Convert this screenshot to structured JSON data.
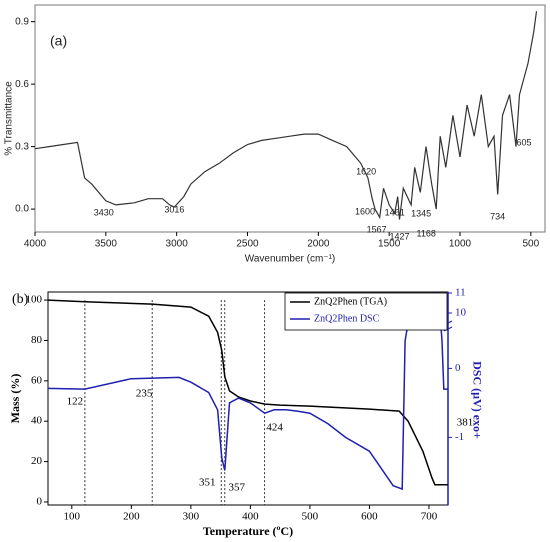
{
  "chart_data": [
    {
      "type": "line",
      "label": "(a)",
      "xlabel": "Wavenumber (cm⁻¹)",
      "ylabel": "% Transmittance",
      "xlim": [
        4000,
        400
      ],
      "xticks": [
        4000,
        3500,
        3000,
        2500,
        2000,
        1500,
        1000,
        500
      ],
      "ylim": [
        -0.11,
        0.98
      ],
      "yticks": [
        {
          "value": 0,
          "label": "0.0"
        },
        0.3,
        0.6,
        0.9
      ],
      "series": [
        {
          "color": "#333333",
          "x": [
            4000,
            3900,
            3800,
            3700,
            3650,
            3600,
            3500,
            3430,
            3300,
            3200,
            3100,
            3050,
            3016,
            2950,
            2900,
            2800,
            2700,
            2600,
            2500,
            2400,
            2300,
            2200,
            2100,
            2000,
            1900,
            1800,
            1700,
            1650,
            1620,
            1600,
            1567,
            1540,
            1500,
            1461,
            1440,
            1427,
            1400,
            1345,
            1320,
            1280,
            1240,
            1200,
            1168,
            1140,
            1100,
            1050,
            1000,
            950,
            900,
            850,
            800,
            760,
            734,
            700,
            650,
            605,
            580,
            520,
            480,
            460
          ],
          "values": [
            0.29,
            0.3,
            0.31,
            0.32,
            0.15,
            0.12,
            0.04,
            0.02,
            0.03,
            0.05,
            0.05,
            0.02,
            0.01,
            0.06,
            0.12,
            0.18,
            0.22,
            0.27,
            0.31,
            0.33,
            0.34,
            0.35,
            0.36,
            0.36,
            0.33,
            0.3,
            0.22,
            0.15,
            0.05,
            0.0,
            -0.04,
            0.1,
            0.02,
            -0.02,
            0.06,
            -0.05,
            0.1,
            0.02,
            0.2,
            0.08,
            0.3,
            0.12,
            0.0,
            0.35,
            0.2,
            0.45,
            0.25,
            0.5,
            0.35,
            0.55,
            0.3,
            0.35,
            0.07,
            0.45,
            0.55,
            0.3,
            0.55,
            0.7,
            0.85,
            0.95
          ]
        }
      ],
      "peak_labels": [
        3430,
        3016,
        1620,
        1600,
        1567,
        1461,
        1427,
        1345,
        1168,
        734,
        605
      ]
    },
    {
      "type": "line",
      "label": "(b)",
      "xlabel": "Temperature (ºC)",
      "ylabel": "Mass (%)",
      "y2label": "DSC (µV) exo+",
      "xlim": [
        60,
        732
      ],
      "xticks": [
        100,
        200,
        300,
        400,
        500,
        600,
        700
      ],
      "ylim": [
        -1.5,
        104
      ],
      "yticks": [
        0,
        20,
        40,
        60,
        80,
        100
      ],
      "y2lim": [
        -1.98,
        11.05
      ],
      "y2ticks": [
        -1,
        0,
        10,
        11
      ],
      "y2break": [
        0.6,
        9.3
      ],
      "legend": "upper right",
      "series": [
        {
          "name": "ZnQ2Phen (TGA)",
          "color": "#000000",
          "x": [
            60,
            122,
            235,
            300,
            330,
            345,
            352,
            357,
            365,
            380,
            400,
            424,
            450,
            500,
            600,
            650,
            665,
            690,
            705,
            710,
            732
          ],
          "values": [
            100,
            99.2,
            98,
            96.5,
            92,
            84,
            75,
            62,
            55,
            52,
            50,
            48.5,
            48,
            47.5,
            46,
            45,
            40,
            25,
            12,
            8.5,
            8.5
          ]
        },
        {
          "name": "ZnQ2Phen DSC",
          "color": "#1f1fb0",
          "axis": "y2",
          "x": [
            60,
            122,
            200,
            280,
            300,
            330,
            345,
            352,
            357,
            365,
            380,
            400,
            424,
            440,
            460,
            480,
            500,
            530,
            560,
            600,
            640,
            655,
            660,
            665,
            680,
            700,
            710,
            718,
            722,
            725,
            732
          ],
          "values": [
            -0.29,
            -0.3,
            -0.15,
            -0.13,
            -0.2,
            -0.35,
            -0.6,
            -1.3,
            -1.48,
            -0.5,
            -0.43,
            -0.5,
            -0.65,
            -0.6,
            -0.6,
            -0.62,
            -0.65,
            -0.8,
            -1.0,
            -1.2,
            -1.7,
            -1.75,
            0.4,
            9.5,
            10.2,
            10.5,
            11.0,
            10.2,
            0.4,
            -0.3,
            -0.3
          ]
        }
      ],
      "vlines": [
        122,
        235,
        351,
        357,
        424
      ],
      "annotation": "381"
    }
  ]
}
